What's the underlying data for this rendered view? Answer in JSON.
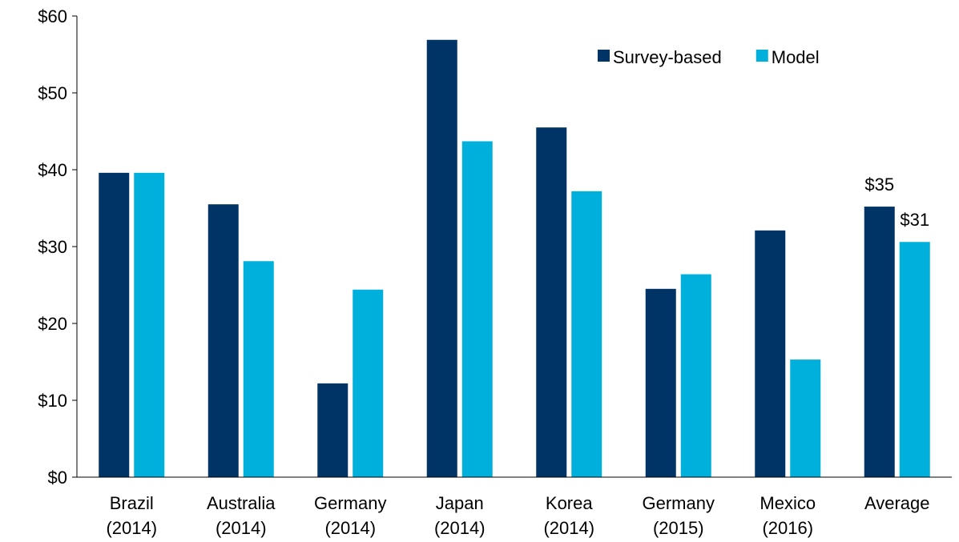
{
  "chart_data": {
    "type": "bar",
    "categories": [
      [
        "Brazil",
        "(2014)"
      ],
      [
        "Australia",
        "(2014)"
      ],
      [
        "Germany",
        "(2014)"
      ],
      [
        "Japan",
        "(2014)"
      ],
      [
        "Korea",
        "(2014)"
      ],
      [
        "Germany",
        "(2015)"
      ],
      [
        "Mexico",
        "(2016)"
      ],
      [
        "Average",
        ""
      ]
    ],
    "series": [
      {
        "name": "Survey-based",
        "color": "#003366",
        "values": [
          39.6,
          35.5,
          12.2,
          56.9,
          45.5,
          24.5,
          32.1,
          35.2
        ]
      },
      {
        "name": "Model",
        "color": "#00B0DC",
        "values": [
          39.6,
          28.1,
          24.4,
          43.7,
          37.2,
          26.4,
          15.3,
          30.6
        ]
      }
    ],
    "data_labels": [
      {
        "series": 0,
        "category": 7,
        "text": "$35"
      },
      {
        "series": 1,
        "category": 7,
        "text": "$31"
      }
    ],
    "y_ticks": [
      "$0",
      "$10",
      "$20",
      "$30",
      "$40",
      "$50",
      "$60"
    ],
    "ylim": [
      0,
      60
    ],
    "title": "",
    "xlabel": "",
    "ylabel": "",
    "grid": false,
    "legend_position": "top-right"
  }
}
